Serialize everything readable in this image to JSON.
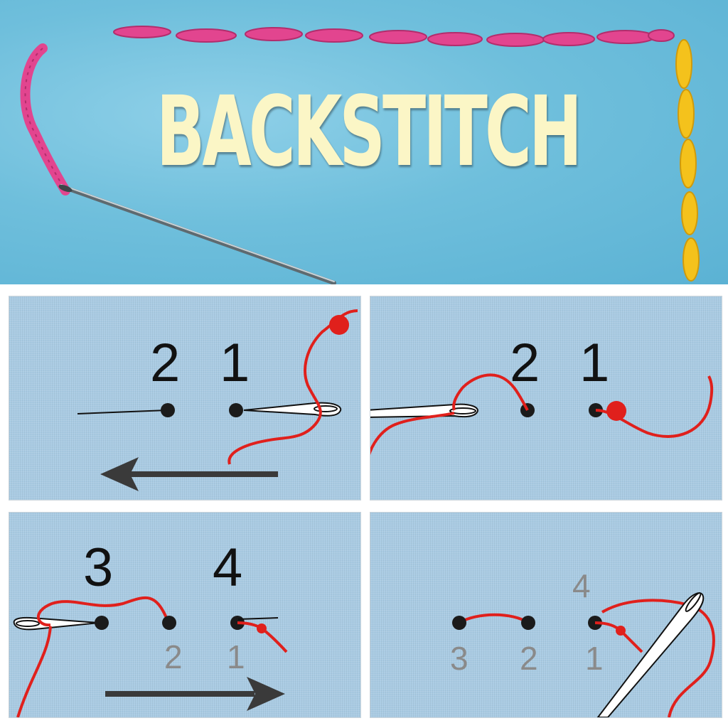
{
  "title": "BACKSTITCH",
  "colors": {
    "fabric_blue": "#6fbfdc",
    "panel_blue": "#a9cbe3",
    "thread_pink": "#e2458f",
    "thread_yellow": "#f4c21c",
    "thread_red": "#e0201c",
    "title_cream": "#fbf6c6",
    "arrow_gray": "#3a3a3a"
  },
  "steps": [
    {
      "labels": [
        "2",
        "1"
      ],
      "arrow": "left"
    },
    {
      "labels": [
        "2",
        "1"
      ]
    },
    {
      "labels": [
        "3",
        "4"
      ],
      "sub_labels": [
        "2",
        "1"
      ],
      "arrow": "right"
    },
    {
      "labels": [
        "4"
      ],
      "sub_labels": [
        "3",
        "2",
        "1"
      ]
    }
  ],
  "icons": [
    "needle-icon",
    "arrow-left-icon",
    "arrow-right-icon",
    "hole-dot-icon",
    "thread-knot-icon"
  ]
}
